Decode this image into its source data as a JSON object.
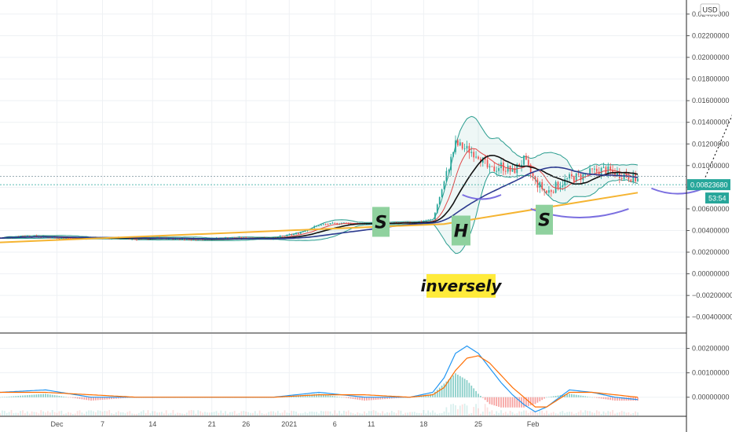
{
  "currency": "USD",
  "price_tag": {
    "value": "0.00823680",
    "timer": "53:54",
    "color": "#26a69a"
  },
  "colors": {
    "grid": "#eef1f4",
    "up": "#26a69a",
    "down": "#ef5350",
    "ma_black": "#111111",
    "ma_navy": "#2c3a8f",
    "ma_red": "#e04848",
    "bollinger": "#2a9d8f",
    "trendline": "#f5b431",
    "arc": "#7b6fe0",
    "macd": "#2196f3",
    "signal": "#ff6d00",
    "label_bg": "#8fd19e",
    "note_bg": "#ffeb3b"
  },
  "annotations": {
    "left_shoulder": "S",
    "head": "H",
    "right_shoulder": "S",
    "note": "inversely"
  },
  "chart_data": [
    {
      "type": "candlestick",
      "x_axis": {
        "ticks": [
          "Dec",
          "7",
          "14",
          "21",
          "26",
          "2021",
          "6",
          "11",
          "18",
          "25",
          "Feb"
        ]
      },
      "y_axis": {
        "ticks": [
          "0.02400000",
          "0.02200000",
          "0.02000000",
          "0.01800000",
          "0.01600000",
          "0.01400000",
          "0.01200000",
          "0.01000000",
          "0.00800000",
          "0.00600000",
          "0.00400000",
          "0.00200000",
          "0.00000000",
          "−0.00200000",
          "−0.00400000"
        ],
        "ylim": [
          -0.0054,
          0.0253
        ]
      },
      "last_price": 0.0082368,
      "overlays": [
        "Bollinger Bands",
        "Moving Averages",
        "Ascending trendline",
        "Inverse head and shoulders"
      ],
      "series_approx": {
        "x_index": [
          0,
          10,
          20,
          30,
          40,
          50,
          60,
          70,
          80,
          90,
          100,
          110,
          120,
          130,
          140,
          150,
          160,
          170,
          180,
          190,
          200,
          210,
          215,
          220,
          225,
          230,
          235,
          240,
          245,
          250,
          255,
          260,
          265,
          270,
          275,
          280
        ],
        "close": [
          0.0033,
          0.0035,
          0.0034,
          0.0033,
          0.0033,
          0.0033,
          0.0032,
          0.0033,
          0.0032,
          0.0032,
          0.0033,
          0.0033,
          0.0033,
          0.0037,
          0.0045,
          0.0047,
          0.0046,
          0.0047,
          0.0047,
          0.005,
          0.012,
          0.011,
          0.0095,
          0.01,
          0.0094,
          0.0105,
          0.0085,
          0.0075,
          0.0082,
          0.0088,
          0.009,
          0.0094,
          0.0096,
          0.0093,
          0.0091,
          0.0087
        ]
      }
    },
    {
      "type": "line",
      "name_hint": "oscillator",
      "y_axis": {
        "ticks": [
          "0.00200000",
          "0.00100000",
          "0.00000000"
        ],
        "ylim": [
          -0.00075,
          0.0026
        ]
      },
      "x_index": [
        0,
        20,
        40,
        60,
        80,
        100,
        120,
        140,
        160,
        180,
        190,
        195,
        200,
        205,
        210,
        215,
        220,
        225,
        230,
        235,
        240,
        250,
        260,
        270,
        280
      ],
      "series": [
        {
          "values": [
            0.0002,
            0.0003,
            0.0,
            0.0,
            0.0,
            0.0,
            0.0,
            0.0002,
            0.0,
            0.0,
            0.0002,
            0.0008,
            0.0018,
            0.0021,
            0.0018,
            0.0012,
            0.0006,
            0.0001,
            -0.0003,
            -0.0006,
            -0.0004,
            0.0003,
            0.0002,
            0.0,
            -0.0001
          ]
        },
        {
          "values": [
            0.0002,
            0.0002,
            0.0001,
            0.0,
            0.0,
            0.0,
            0.0,
            0.0001,
            0.0001,
            0.0,
            0.0001,
            0.0004,
            0.0011,
            0.0016,
            0.0017,
            0.0014,
            0.0009,
            0.0004,
            0.0,
            -0.0004,
            -0.0004,
            0.0002,
            0.0002,
            0.0001,
            0.0
          ]
        }
      ]
    }
  ]
}
